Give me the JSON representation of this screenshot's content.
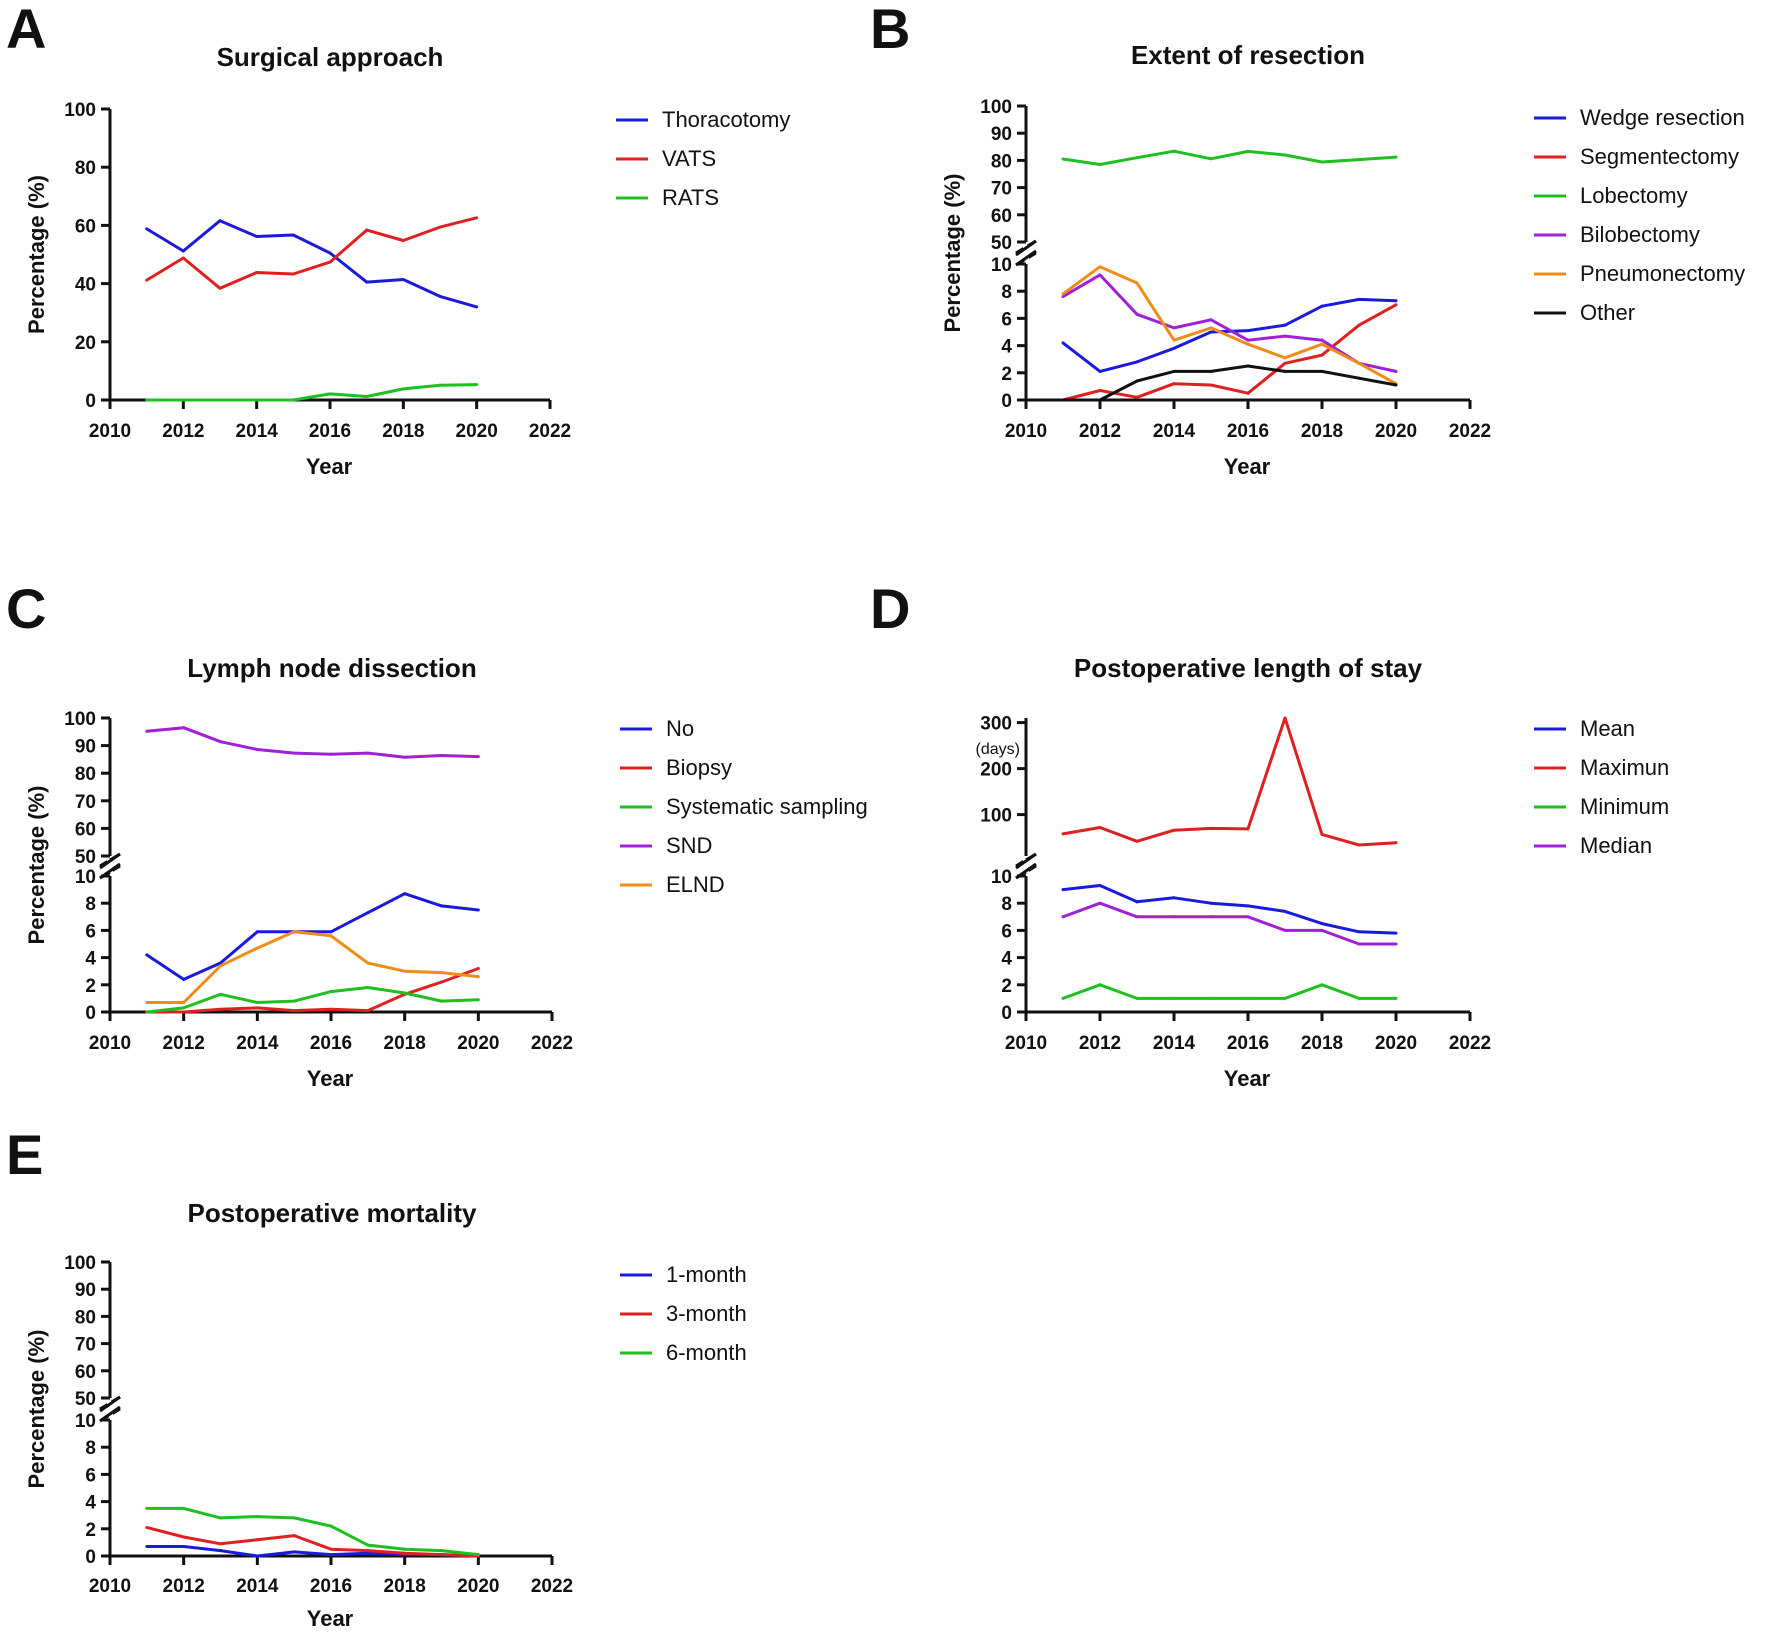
{
  "colors": {
    "blue": "#1a1adc",
    "red": "#e02020",
    "green": "#1fbf1f",
    "purple": "#a020d8",
    "orange": "#f08c1a",
    "black": "#111111"
  },
  "chart_data": [
    {
      "type": "line",
      "panel": "A",
      "title": "Surgical approach",
      "xlabel": "Year",
      "ylabel": "Percentage (%)",
      "xlim": [
        2010,
        2022
      ],
      "xticks": [
        "2010",
        "2012",
        "2014",
        "2016",
        "2018",
        "2020",
        "2022"
      ],
      "ylim": [
        0,
        100
      ],
      "yticks": [
        "0",
        "20",
        "40",
        "60",
        "80",
        "100"
      ],
      "broken_axis": false,
      "x": [
        2011,
        2012,
        2013,
        2014,
        2015,
        2016,
        2017,
        2018,
        2019,
        2020
      ],
      "series": [
        {
          "name": "Thoracotomy",
          "color": "blue",
          "values": [
            58.8,
            51.2,
            61.6,
            56.2,
            56.7,
            50.5,
            40.5,
            41.4,
            35.6,
            32.0
          ]
        },
        {
          "name": "VATS",
          "color": "red",
          "values": [
            41.2,
            48.8,
            38.4,
            43.8,
            43.3,
            47.4,
            58.4,
            54.8,
            59.4,
            62.6
          ]
        },
        {
          "name": "RATS",
          "color": "green",
          "values": [
            0.0,
            0.0,
            0.0,
            0.0,
            0.0,
            2.1,
            1.2,
            3.8,
            5.1,
            5.3
          ]
        }
      ]
    },
    {
      "type": "line",
      "panel": "B",
      "title": "Extent of resection",
      "xlabel": "Year",
      "ylabel": "Percentage (%)",
      "xlim": [
        2010,
        2022
      ],
      "xticks": [
        "2010",
        "2012",
        "2014",
        "2016",
        "2018",
        "2020",
        "2022"
      ],
      "broken_axis": true,
      "ylim_lower": [
        0,
        10
      ],
      "yticks_lower": [
        "0",
        "2",
        "4",
        "6",
        "8",
        "10"
      ],
      "ylim_upper": [
        50,
        100
      ],
      "yticks_upper": [
        "50",
        "60",
        "70",
        "80",
        "90",
        "100"
      ],
      "x": [
        2011,
        2012,
        2013,
        2014,
        2015,
        2016,
        2017,
        2018,
        2019,
        2020
      ],
      "series": [
        {
          "name": "Wedge resection",
          "color": "blue",
          "values": [
            4.2,
            2.1,
            2.8,
            3.8,
            5.0,
            5.1,
            5.5,
            6.9,
            7.4,
            7.3
          ]
        },
        {
          "name": "Segmentectomy",
          "color": "red",
          "values": [
            0.0,
            0.7,
            0.2,
            1.2,
            1.1,
            0.5,
            2.7,
            3.3,
            5.5,
            7.0
          ]
        },
        {
          "name": "Lobectomy",
          "color": "green",
          "values": [
            80.5,
            78.5,
            81.0,
            83.4,
            80.6,
            83.3,
            82.0,
            79.4,
            80.3,
            81.2
          ]
        },
        {
          "name": "Bilobectomy",
          "color": "purple",
          "values": [
            7.6,
            9.2,
            6.3,
            5.3,
            5.9,
            4.4,
            4.7,
            4.4,
            2.7,
            2.1
          ]
        },
        {
          "name": "Pneumonectomy",
          "color": "orange",
          "values": [
            7.8,
            9.8,
            8.6,
            4.4,
            5.3,
            4.1,
            3.1,
            4.1,
            2.7,
            1.2
          ]
        },
        {
          "name": "Other",
          "color": "black",
          "values": [
            0.0,
            0.0,
            1.4,
            2.1,
            2.1,
            2.5,
            2.1,
            2.1,
            1.6,
            1.1
          ]
        }
      ]
    },
    {
      "type": "line",
      "panel": "C",
      "title": "Lymph node dissection",
      "xlabel": "Year",
      "ylabel": "Percentage (%)",
      "xlim": [
        2010,
        2022
      ],
      "xticks": [
        "2010",
        "2012",
        "2014",
        "2016",
        "2018",
        "2020",
        "2022"
      ],
      "broken_axis": true,
      "ylim_lower": [
        0,
        10
      ],
      "yticks_lower": [
        "0",
        "2",
        "4",
        "6",
        "8",
        "10"
      ],
      "ylim_upper": [
        50,
        100
      ],
      "yticks_upper": [
        "50",
        "60",
        "70",
        "80",
        "90",
        "100"
      ],
      "x": [
        2011,
        2012,
        2013,
        2014,
        2015,
        2016,
        2017,
        2018,
        2019,
        2020
      ],
      "series": [
        {
          "name": "No",
          "color": "blue",
          "values": [
            4.2,
            2.4,
            3.6,
            5.9,
            5.9,
            5.9,
            7.3,
            8.7,
            7.8,
            7.5
          ]
        },
        {
          "name": "Biopsy",
          "color": "red",
          "values": [
            0.0,
            0.0,
            0.2,
            0.3,
            0.1,
            0.2,
            0.1,
            1.3,
            2.2,
            3.2
          ]
        },
        {
          "name": "Systematic sampling",
          "color": "green",
          "values": [
            0.0,
            0.3,
            1.3,
            0.7,
            0.8,
            1.5,
            1.8,
            1.4,
            0.8,
            0.9
          ]
        },
        {
          "name": "SND",
          "color": "purple",
          "values": [
            95.2,
            96.5,
            91.4,
            88.6,
            87.3,
            86.9,
            87.3,
            85.8,
            86.4,
            86.0
          ]
        },
        {
          "name": "ELND",
          "color": "orange",
          "values": [
            0.7,
            0.7,
            3.4,
            4.7,
            5.9,
            5.6,
            3.6,
            3.0,
            2.9,
            2.6
          ]
        }
      ]
    },
    {
      "type": "line",
      "panel": "D",
      "title": "Postoperative length of stay",
      "xlabel": "Year",
      "ylabel": "",
      "y_unit_label": "(days)",
      "xlim": [
        2010,
        2022
      ],
      "xticks": [
        "2010",
        "2012",
        "2014",
        "2016",
        "2018",
        "2020",
        "2022"
      ],
      "broken_axis": true,
      "ylim_lower": [
        0,
        10
      ],
      "yticks_lower": [
        "0",
        "2",
        "4",
        "6",
        "8",
        "10"
      ],
      "ylim_upper": [
        10,
        310
      ],
      "yticks_upper": [
        "100",
        "200",
        "300"
      ],
      "x": [
        2011,
        2012,
        2013,
        2014,
        2015,
        2016,
        2017,
        2018,
        2019,
        2020
      ],
      "series": [
        {
          "name": "Mean",
          "color": "blue",
          "values": [
            9.0,
            9.3,
            8.1,
            8.4,
            8.0,
            7.8,
            7.4,
            6.5,
            5.9,
            5.8
          ]
        },
        {
          "name": "Maximun",
          "color": "red",
          "values": [
            58,
            72,
            42,
            66,
            70,
            69,
            310,
            57,
            34,
            39
          ]
        },
        {
          "name": "Minimum",
          "color": "green",
          "values": [
            1,
            2,
            1,
            1,
            1,
            1,
            1,
            2,
            1,
            1
          ]
        },
        {
          "name": "Median",
          "color": "purple",
          "values": [
            7,
            8,
            7,
            7,
            7,
            7,
            6,
            6,
            5,
            5
          ]
        }
      ]
    },
    {
      "type": "line",
      "panel": "E",
      "title": "Postoperative mortality",
      "xlabel": "Year",
      "ylabel": "Percentage (%)",
      "xlim": [
        2010,
        2022
      ],
      "xticks": [
        "2010",
        "2012",
        "2014",
        "2016",
        "2018",
        "2020",
        "2022"
      ],
      "broken_axis": true,
      "ylim_lower": [
        0,
        10
      ],
      "yticks_lower": [
        "0",
        "2",
        "4",
        "6",
        "8",
        "10"
      ],
      "ylim_upper": [
        50,
        100
      ],
      "yticks_upper": [
        "50",
        "60",
        "70",
        "80",
        "90",
        "100"
      ],
      "x": [
        2011,
        2012,
        2013,
        2014,
        2015,
        2016,
        2017,
        2018,
        2019,
        2020
      ],
      "series": [
        {
          "name": "1-month",
          "color": "blue",
          "values": [
            0.7,
            0.7,
            0.4,
            0.0,
            0.3,
            0.1,
            0.2,
            0.1,
            0.1,
            0.0
          ]
        },
        {
          "name": "3-month",
          "color": "red",
          "values": [
            2.1,
            1.4,
            0.9,
            1.2,
            1.5,
            0.5,
            0.4,
            0.2,
            0.1,
            0.0
          ]
        },
        {
          "name": "6-month",
          "color": "green",
          "values": [
            3.5,
            3.5,
            2.8,
            2.9,
            2.8,
            2.2,
            0.8,
            0.5,
            0.4,
            0.1
          ]
        }
      ]
    }
  ]
}
